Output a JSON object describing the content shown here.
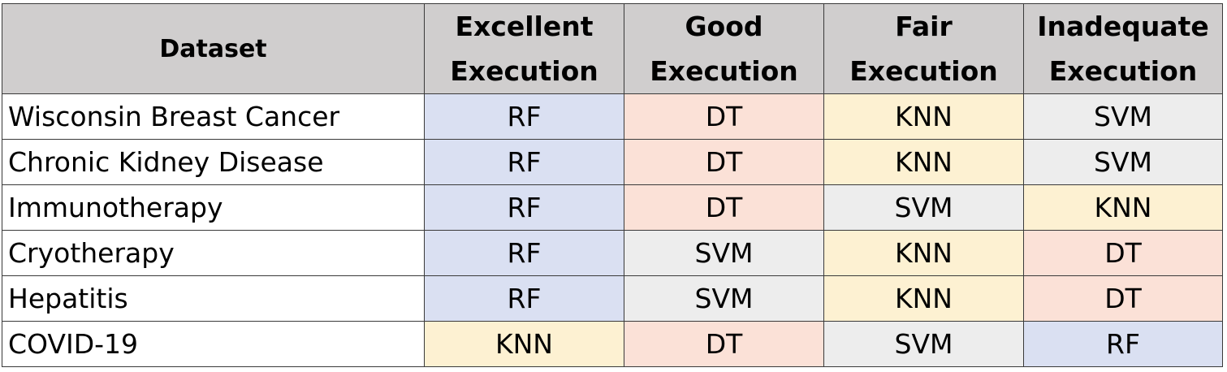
{
  "table": {
    "headers": [
      {
        "lines": [
          "Dataset"
        ]
      },
      {
        "lines": [
          "Excellent",
          "Execution"
        ]
      },
      {
        "lines": [
          "Good",
          "Execution"
        ]
      },
      {
        "lines": [
          "Fair",
          "Execution"
        ]
      },
      {
        "lines": [
          "Inadequate",
          "Execution"
        ]
      }
    ],
    "rows": [
      {
        "dataset": "Wisconsin Breast Cancer",
        "cells": [
          "RF",
          "DT",
          "KNN",
          "SVM"
        ]
      },
      {
        "dataset": "Chronic Kidney Disease",
        "cells": [
          "RF",
          "DT",
          "KNN",
          "SVM"
        ]
      },
      {
        "dataset": "Immunotherapy",
        "cells": [
          "RF",
          "DT",
          "SVM",
          "KNN"
        ]
      },
      {
        "dataset": "Cryotherapy",
        "cells": [
          "RF",
          "SVM",
          "KNN",
          "DT"
        ]
      },
      {
        "dataset": "Hepatitis",
        "cells": [
          "RF",
          "SVM",
          "KNN",
          "DT"
        ]
      },
      {
        "dataset": "COVID-19",
        "cells": [
          "KNN",
          "DT",
          "SVM",
          "RF"
        ]
      }
    ],
    "cell_colors": {
      "RF": "#dae0f2",
      "DT": "#fbe1d7",
      "KNN": "#fdf1d2",
      "SVM": "#ededed"
    },
    "header_color": "#d0cece"
  }
}
